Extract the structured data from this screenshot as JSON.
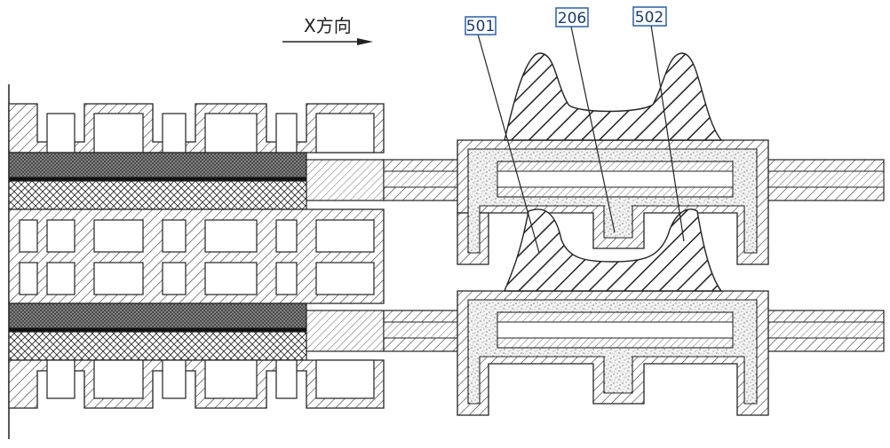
{
  "direction_label": "X方向",
  "labels": {
    "left": "501",
    "middle": "206",
    "right": "502"
  },
  "colors": {
    "ink": "#222222",
    "label_box": "#2b5fa8",
    "label_text": "#1b3a6b"
  }
}
